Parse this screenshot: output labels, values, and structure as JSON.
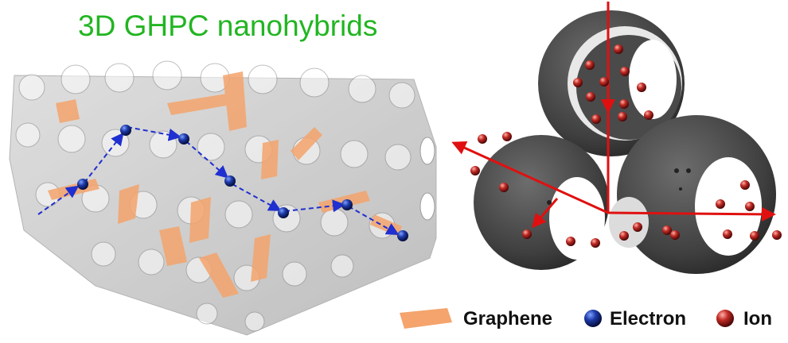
{
  "title": "3D GHPC nanohybrids",
  "legend": [
    {
      "label": "Graphene",
      "swatch": "graphene-sheet",
      "color": "#f4a46c"
    },
    {
      "label": "Electron",
      "swatch": "blue-sphere",
      "color": "#1a2f8f"
    },
    {
      "label": "Ion",
      "swatch": "red-sphere",
      "color": "#b52a2a"
    }
  ],
  "colors": {
    "title": "#22b522",
    "framework": "#bdbdbd",
    "graphene": "#f4a46c",
    "electron_path": "#1f2fd0",
    "sphere_shell": "#4a4a4a",
    "arrows": "#e01010"
  }
}
